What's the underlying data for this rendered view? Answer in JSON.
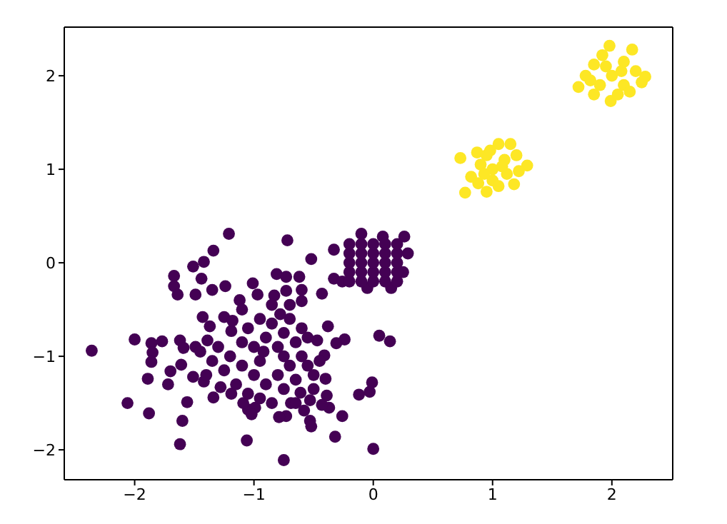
{
  "chart_data": {
    "type": "scatter",
    "marker": "circle",
    "xlim": [
      -2.59,
      2.51
    ],
    "ylim": [
      -2.32,
      2.52
    ],
    "xticks": [
      -2,
      -1,
      0,
      1,
      2
    ],
    "yticks": [
      -2,
      -1,
      0,
      1,
      2
    ],
    "series": [
      {
        "color": "#440154",
        "x": [
          -2.36,
          -2.0,
          -1.86,
          -1.77,
          -1.85,
          -1.86,
          -1.89,
          -2.06,
          -1.88,
          -1.72,
          -1.7,
          -1.62,
          -1.6,
          -1.56,
          -1.62,
          -1.59,
          -1.49,
          -1.61,
          -1.51,
          -1.42,
          -1.67,
          -1.67,
          -1.64,
          -1.51,
          -1.42,
          -1.44,
          -1.34,
          -1.49,
          -1.35,
          -1.24,
          -1.21,
          -1.43,
          -1.37,
          -1.39,
          -1.34,
          -1.28,
          -1.19,
          -1.25,
          -1.19,
          -1.12,
          -1.01,
          -0.97,
          -1.06,
          -1.05,
          -0.99,
          -1.09,
          -0.72,
          -0.81,
          -0.73,
          -0.62,
          -0.73,
          -0.6,
          -0.6,
          -0.52,
          -0.43,
          -0.33,
          -0.83,
          -0.75,
          -0.73,
          -0.79,
          -0.53,
          -0.52,
          -0.32,
          -0.26,
          0.0,
          -0.12,
          -0.03,
          -0.01,
          0.05,
          0.14,
          -0.38,
          -0.41,
          -0.24,
          -0.31,
          -0.47,
          -0.4,
          -0.39,
          -0.37,
          -0.43,
          -0.53,
          -0.61,
          -0.69,
          -1.1,
          -1.05,
          -0.95,
          -0.9,
          -0.85,
          -0.8,
          -0.75,
          -0.7,
          -0.65,
          -0.6,
          -0.55,
          -0.5,
          -0.45,
          -0.7,
          -0.8,
          -0.9,
          -1.0,
          -1.1,
          -1.2,
          -1.3,
          -1.25,
          -1.15,
          -1.05,
          -0.95,
          -0.85,
          -0.75,
          -0.65,
          -0.6,
          -0.7,
          -0.85,
          -1.0,
          -1.1,
          -0.95,
          -0.75,
          -0.55,
          -0.5,
          -1.35,
          -1.4,
          -1.45,
          -0.65,
          -0.78,
          -0.92,
          -1.18,
          -1.02,
          -0.58,
          -0.1,
          0.08,
          0.26,
          0.29,
          -0.33,
          -0.26,
          0.15,
          -0.05,
          0.25,
          -0.2,
          -0.2,
          -0.2,
          -0.2,
          -0.2,
          -0.1,
          -0.1,
          -0.1,
          -0.1,
          -0.1,
          0.0,
          0.0,
          0.0,
          0.0,
          0.0,
          0.1,
          0.1,
          0.1,
          0.1,
          0.1,
          0.2,
          0.2,
          0.2,
          0.2,
          0.2
        ],
        "values": [
          -0.94,
          -0.82,
          -0.86,
          -0.84,
          -0.96,
          -1.06,
          -1.24,
          -1.5,
          -1.61,
          -1.3,
          -1.16,
          -1.94,
          -1.69,
          -1.49,
          -0.83,
          -0.91,
          -0.9,
          -1.09,
          -1.22,
          -1.27,
          -0.14,
          -0.25,
          -0.34,
          -0.04,
          0.01,
          -0.17,
          0.13,
          -0.34,
          -0.29,
          -0.25,
          0.31,
          -0.58,
          -0.68,
          -0.83,
          -1.44,
          -1.33,
          -1.4,
          -0.58,
          -0.73,
          -0.4,
          -0.22,
          -0.34,
          -1.9,
          -1.57,
          -1.55,
          -1.5,
          0.24,
          -0.12,
          -0.15,
          -0.15,
          -0.3,
          -0.29,
          -0.41,
          0.04,
          -0.33,
          -0.17,
          -0.35,
          -2.11,
          -1.64,
          -1.65,
          -1.69,
          -1.75,
          -1.86,
          -1.64,
          -1.99,
          -1.41,
          -1.38,
          -1.28,
          -0.78,
          -0.84,
          -0.68,
          -0.99,
          -0.82,
          -0.86,
          -0.83,
          -1.24,
          -1.42,
          -1.55,
          -1.52,
          -1.47,
          -1.39,
          -1.5,
          -0.5,
          -0.7,
          -0.6,
          -0.8,
          -0.65,
          -0.9,
          -0.75,
          -0.6,
          -0.85,
          -1.0,
          -1.1,
          -1.2,
          -1.05,
          -1.1,
          -1.2,
          -1.3,
          -1.2,
          -1.1,
          -1.0,
          -0.9,
          -1.15,
          -1.3,
          -1.4,
          -1.45,
          -1.5,
          -1.35,
          -1.25,
          -0.7,
          -0.45,
          -0.45,
          -0.9,
          -0.85,
          -1.05,
          -1.0,
          -0.8,
          -1.35,
          -1.05,
          -1.2,
          -0.95,
          -1.5,
          -0.55,
          -0.95,
          -0.62,
          -1.62,
          -1.58,
          0.31,
          0.28,
          0.28,
          0.1,
          0.14,
          -0.2,
          -0.27,
          -0.27,
          -0.1,
          -0.2,
          -0.1,
          0.0,
          0.1,
          0.2,
          -0.2,
          -0.1,
          0.0,
          0.1,
          0.2,
          -0.2,
          -0.1,
          0.0,
          0.1,
          0.2,
          -0.2,
          -0.1,
          0.0,
          0.1,
          0.2,
          -0.2,
          -0.1,
          0.0,
          0.1,
          0.2
        ]
      },
      {
        "color": "#fde725",
        "x": [
          0.73,
          0.77,
          0.95,
          1.05,
          1.15,
          1.29,
          1.18,
          0.87,
          0.82,
          1.0,
          0.9,
          1.1,
          1.0,
          1.12,
          0.95,
          0.88,
          1.2,
          1.05,
          1.22,
          0.93,
          1.08,
          0.98,
          1.98,
          2.17,
          2.28,
          1.72,
          1.99,
          2.25,
          1.78,
          1.85,
          2.1,
          2.0,
          1.9,
          2.1,
          1.95,
          2.05,
          1.85,
          2.2,
          1.92,
          2.08,
          2.15,
          1.82
        ],
        "values": [
          1.12,
          0.75,
          0.76,
          1.27,
          1.27,
          1.04,
          0.84,
          1.18,
          0.92,
          1.0,
          1.05,
          1.1,
          0.88,
          0.95,
          1.15,
          0.85,
          1.15,
          0.82,
          0.98,
          0.95,
          1.03,
          1.2,
          2.32,
          2.28,
          1.99,
          1.88,
          1.73,
          1.93,
          2.0,
          2.12,
          2.15,
          2.0,
          1.9,
          1.9,
          2.1,
          1.8,
          1.8,
          2.05,
          2.22,
          2.05,
          1.83,
          1.95
        ]
      }
    ]
  }
}
